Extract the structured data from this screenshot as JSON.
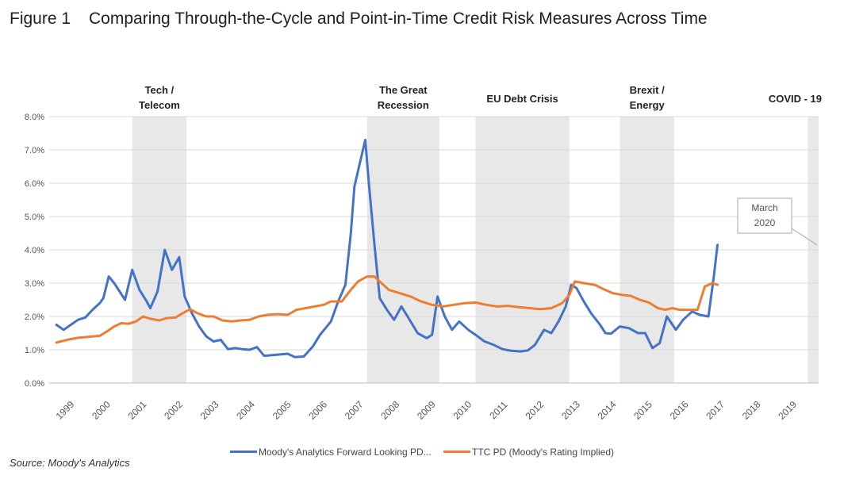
{
  "figure": {
    "label": "Figure 1",
    "title": "Comparing Through-the-Cycle and Point-in-Time Credit Risk Measures Across Time"
  },
  "source": "Source: Moody's Analytics",
  "colors": {
    "pd": "#4472C4",
    "ttc": "#ED7D31",
    "shade": "#e8e8e8",
    "grid": "#d9d9d9"
  },
  "chart_data": {
    "type": "line",
    "ylim": [
      0,
      8
    ],
    "y_ticks": [
      "0.0%",
      "1.0%",
      "2.0%",
      "3.0%",
      "4.0%",
      "5.0%",
      "6.0%",
      "7.0%",
      "8.0%"
    ],
    "x_range": [
      1998.5,
      2019.8
    ],
    "x_ticks": [
      "1999",
      "2000",
      "2001",
      "2002",
      "2003",
      "2004",
      "2005",
      "2006",
      "2007",
      "2008",
      "2009",
      "2010",
      "2011",
      "2012",
      "2013",
      "2014",
      "2015",
      "2016",
      "2017",
      "2018",
      "2019"
    ],
    "grid": "horizontal",
    "legend_position": "bottom",
    "shaded_periods": [
      {
        "label": [
          "Tech /",
          "Telecom"
        ],
        "start": 2000.8,
        "end": 2002.3
      },
      {
        "label": [
          "The Great",
          "Recession"
        ],
        "start": 2007.3,
        "end": 2009.3
      },
      {
        "label": [
          "EU Debt Crisis"
        ],
        "start": 2010.3,
        "end": 2012.9
      },
      {
        "label": [
          "Brexit /",
          "Energy"
        ],
        "start": 2014.3,
        "end": 2015.8
      },
      {
        "label": [
          "COVID - 19"
        ],
        "start": 2019.5,
        "end": 2019.8
      }
    ],
    "annotation": {
      "text": [
        "March",
        "2020"
      ],
      "x": 2019.75,
      "y": 4.15
    },
    "series": [
      {
        "name": "Moody's Analytics Forward Looking PD...",
        "color": "#4472C4",
        "points": [
          [
            1998.7,
            1.75
          ],
          [
            1998.9,
            1.6
          ],
          [
            1999.1,
            1.75
          ],
          [
            1999.3,
            1.9
          ],
          [
            1999.5,
            1.97
          ],
          [
            1999.7,
            2.2
          ],
          [
            1999.9,
            2.4
          ],
          [
            2000.0,
            2.55
          ],
          [
            2000.15,
            3.2
          ],
          [
            2000.3,
            3.0
          ],
          [
            2000.45,
            2.75
          ],
          [
            2000.6,
            2.5
          ],
          [
            2000.8,
            3.4
          ],
          [
            2001.0,
            2.8
          ],
          [
            2001.2,
            2.45
          ],
          [
            2001.3,
            2.25
          ],
          [
            2001.5,
            2.75
          ],
          [
            2001.7,
            4.0
          ],
          [
            2001.9,
            3.4
          ],
          [
            2002.1,
            3.78
          ],
          [
            2002.25,
            2.6
          ],
          [
            2002.45,
            2.1
          ],
          [
            2002.65,
            1.7
          ],
          [
            2002.85,
            1.4
          ],
          [
            2003.05,
            1.25
          ],
          [
            2003.25,
            1.3
          ],
          [
            2003.45,
            1.02
          ],
          [
            2003.65,
            1.05
          ],
          [
            2003.85,
            1.02
          ],
          [
            2004.05,
            1.0
          ],
          [
            2004.25,
            1.08
          ],
          [
            2004.45,
            0.82
          ],
          [
            2004.8,
            0.85
          ],
          [
            2005.1,
            0.88
          ],
          [
            2005.3,
            0.78
          ],
          [
            2005.55,
            0.8
          ],
          [
            2005.8,
            1.1
          ],
          [
            2006.0,
            1.45
          ],
          [
            2006.3,
            1.85
          ],
          [
            2006.5,
            2.45
          ],
          [
            2006.7,
            2.95
          ],
          [
            2006.85,
            4.5
          ],
          [
            2006.95,
            5.9
          ],
          [
            2007.1,
            6.6
          ],
          [
            2007.25,
            7.3
          ],
          [
            2007.35,
            6.0
          ],
          [
            2007.5,
            4.2
          ],
          [
            2007.65,
            2.55
          ],
          [
            2007.85,
            2.2
          ],
          [
            2008.05,
            1.9
          ],
          [
            2008.25,
            2.3
          ],
          [
            2008.45,
            1.95
          ],
          [
            2008.7,
            1.5
          ],
          [
            2008.95,
            1.35
          ],
          [
            2009.1,
            1.45
          ],
          [
            2009.25,
            2.6
          ],
          [
            2009.45,
            2.0
          ],
          [
            2009.65,
            1.6
          ],
          [
            2009.85,
            1.85
          ],
          [
            2010.1,
            1.6
          ],
          [
            2010.3,
            1.45
          ],
          [
            2010.55,
            1.25
          ],
          [
            2010.8,
            1.15
          ],
          [
            2011.05,
            1.02
          ],
          [
            2011.3,
            0.97
          ],
          [
            2011.55,
            0.95
          ],
          [
            2011.75,
            0.98
          ],
          [
            2011.95,
            1.15
          ],
          [
            2012.2,
            1.6
          ],
          [
            2012.4,
            1.5
          ],
          [
            2012.6,
            1.85
          ],
          [
            2012.8,
            2.3
          ],
          [
            2012.95,
            2.95
          ],
          [
            2013.1,
            2.85
          ],
          [
            2013.3,
            2.45
          ],
          [
            2013.5,
            2.1
          ],
          [
            2013.75,
            1.75
          ],
          [
            2013.9,
            1.5
          ],
          [
            2014.05,
            1.48
          ],
          [
            2014.3,
            1.7
          ],
          [
            2014.55,
            1.65
          ],
          [
            2014.8,
            1.5
          ],
          [
            2015.0,
            1.5
          ],
          [
            2015.2,
            1.05
          ],
          [
            2015.4,
            1.2
          ],
          [
            2015.6,
            2.0
          ],
          [
            2015.85,
            1.6
          ],
          [
            2016.05,
            1.9
          ],
          [
            2016.3,
            2.15
          ],
          [
            2016.5,
            2.05
          ],
          [
            2016.75,
            2.0
          ],
          [
            2016.9,
            3.2
          ],
          [
            2017.0,
            4.15
          ]
        ]
      },
      {
        "name": "TTC PD (Moody's Rating Implied)",
        "color": "#ED7D31",
        "points": [
          [
            1998.7,
            1.22
          ],
          [
            1999.0,
            1.3
          ],
          [
            1999.3,
            1.36
          ],
          [
            1999.6,
            1.39
          ],
          [
            1999.9,
            1.42
          ],
          [
            2000.1,
            1.55
          ],
          [
            2000.3,
            1.7
          ],
          [
            2000.5,
            1.8
          ],
          [
            2000.7,
            1.78
          ],
          [
            2000.9,
            1.85
          ],
          [
            2001.1,
            2.0
          ],
          [
            2001.3,
            1.93
          ],
          [
            2001.55,
            1.88
          ],
          [
            2001.75,
            1.95
          ],
          [
            2002.0,
            1.97
          ],
          [
            2002.2,
            2.1
          ],
          [
            2002.4,
            2.22
          ],
          [
            2002.6,
            2.1
          ],
          [
            2002.85,
            2.0
          ],
          [
            2003.05,
            2.0
          ],
          [
            2003.3,
            1.88
          ],
          [
            2003.55,
            1.85
          ],
          [
            2003.8,
            1.88
          ],
          [
            2004.05,
            1.9
          ],
          [
            2004.3,
            2.0
          ],
          [
            2004.55,
            2.05
          ],
          [
            2004.8,
            2.07
          ],
          [
            2005.1,
            2.05
          ],
          [
            2005.35,
            2.2
          ],
          [
            2005.6,
            2.25
          ],
          [
            2005.85,
            2.3
          ],
          [
            2006.1,
            2.35
          ],
          [
            2006.3,
            2.45
          ],
          [
            2006.6,
            2.45
          ],
          [
            2006.85,
            2.8
          ],
          [
            2007.05,
            3.05
          ],
          [
            2007.3,
            3.2
          ],
          [
            2007.5,
            3.2
          ],
          [
            2007.7,
            3.0
          ],
          [
            2007.9,
            2.8
          ],
          [
            2008.2,
            2.7
          ],
          [
            2008.5,
            2.6
          ],
          [
            2008.8,
            2.45
          ],
          [
            2009.1,
            2.35
          ],
          [
            2009.4,
            2.3
          ],
          [
            2009.7,
            2.35
          ],
          [
            2010.0,
            2.4
          ],
          [
            2010.3,
            2.42
          ],
          [
            2010.6,
            2.35
          ],
          [
            2010.9,
            2.3
          ],
          [
            2011.2,
            2.32
          ],
          [
            2011.5,
            2.28
          ],
          [
            2011.8,
            2.25
          ],
          [
            2012.1,
            2.22
          ],
          [
            2012.4,
            2.25
          ],
          [
            2012.7,
            2.4
          ],
          [
            2012.9,
            2.65
          ],
          [
            2013.05,
            3.05
          ],
          [
            2013.3,
            3.0
          ],
          [
            2013.6,
            2.95
          ],
          [
            2013.85,
            2.82
          ],
          [
            2014.1,
            2.7
          ],
          [
            2014.35,
            2.65
          ],
          [
            2014.6,
            2.62
          ],
          [
            2014.85,
            2.5
          ],
          [
            2015.1,
            2.42
          ],
          [
            2015.35,
            2.25
          ],
          [
            2015.55,
            2.2
          ],
          [
            2015.75,
            2.25
          ],
          [
            2015.95,
            2.2
          ],
          [
            2016.2,
            2.2
          ],
          [
            2016.45,
            2.2
          ],
          [
            2016.65,
            2.9
          ],
          [
            2016.85,
            3.0
          ],
          [
            2017.0,
            2.95
          ]
        ]
      }
    ]
  }
}
